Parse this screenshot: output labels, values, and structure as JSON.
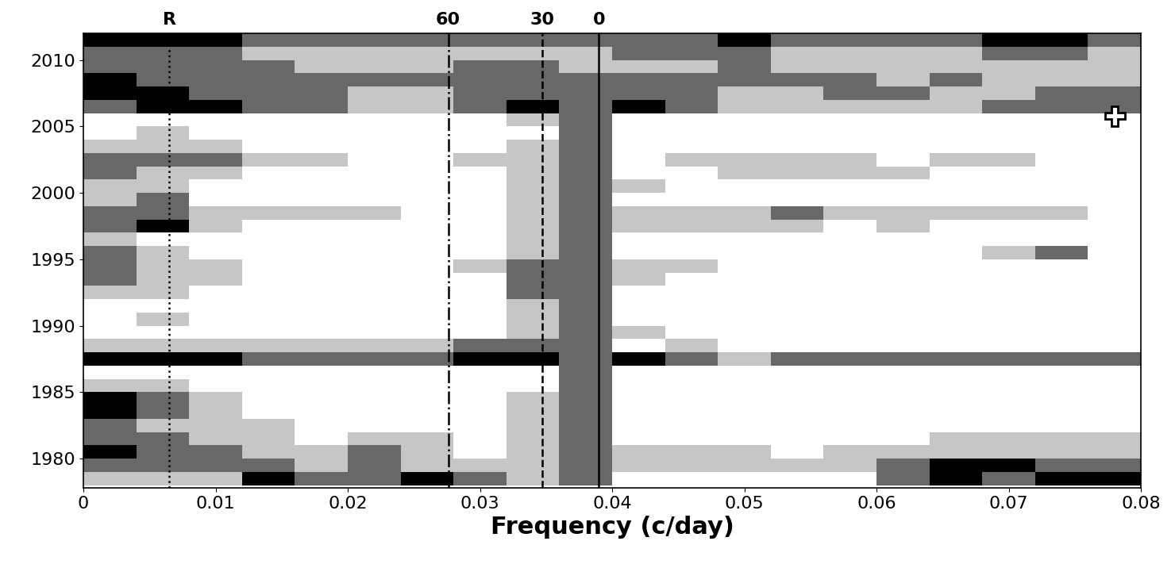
{
  "chart_data": {
    "type": "heatmap",
    "xlabel": "Frequency (c/day)",
    "xlim": [
      0,
      0.08
    ],
    "ylim": [
      1977.8,
      2012
    ],
    "xticks": [
      0,
      0.01,
      0.02,
      0.03,
      0.04,
      0.05,
      0.06,
      0.07,
      0.08
    ],
    "yticks": [
      1980,
      1985,
      1990,
      1995,
      2000,
      2005,
      2010
    ],
    "x_edges": [
      0,
      0.004,
      0.008,
      0.012,
      0.016,
      0.02,
      0.024,
      0.028,
      0.032,
      0.036,
      0.04,
      0.044,
      0.048,
      0.052,
      0.056,
      0.06,
      0.064,
      0.068,
      0.072,
      0.076,
      0.08
    ],
    "y_edges": [
      1978,
      1979,
      1980,
      1981,
      1982,
      1983,
      1984,
      1985,
      1986,
      1987,
      1988,
      1989,
      1990,
      1991,
      1992,
      1993,
      1994,
      1995,
      1996,
      1997,
      1998,
      1999,
      2000,
      2001,
      2002,
      2003,
      2004,
      2005,
      2006,
      2007,
      2008,
      2009,
      2010,
      2011,
      2012
    ],
    "clim": [
      0,
      3
    ],
    "cells": [
      [
        1,
        1,
        1,
        3,
        2,
        2,
        3,
        2,
        1,
        2,
        0,
        0,
        0,
        0,
        0,
        2,
        3,
        2,
        3,
        3
      ],
      [
        2,
        2,
        2,
        2,
        1,
        2,
        1,
        1,
        1,
        2,
        1,
        1,
        1,
        1,
        1,
        2,
        3,
        3,
        2,
        2
      ],
      [
        3,
        2,
        2,
        1,
        1,
        2,
        1,
        0,
        1,
        2,
        1,
        1,
        1,
        0,
        1,
        1,
        1,
        1,
        1,
        1
      ],
      [
        2,
        2,
        1,
        1,
        0,
        1,
        1,
        0,
        1,
        2,
        0,
        0,
        0,
        0,
        0,
        0,
        1,
        1,
        1,
        1
      ],
      [
        2,
        1,
        1,
        1,
        0,
        0,
        0,
        0,
        1,
        2,
        0,
        0,
        0,
        0,
        0,
        0,
        0,
        0,
        0,
        0
      ],
      [
        3,
        2,
        1,
        0,
        0,
        0,
        0,
        0,
        1,
        2,
        0,
        0,
        0,
        0,
        0,
        0,
        0,
        0,
        0,
        0
      ],
      [
        3,
        2,
        1,
        0,
        0,
        0,
        0,
        0,
        1,
        2,
        0,
        0,
        0,
        0,
        0,
        0,
        0,
        0,
        0,
        0
      ],
      [
        1,
        1,
        0,
        0,
        0,
        0,
        0,
        0,
        0,
        2,
        0,
        0,
        0,
        0,
        0,
        0,
        0,
        0,
        0,
        0
      ],
      [
        0,
        0,
        0,
        0,
        0,
        0,
        0,
        0,
        0,
        2,
        0,
        0,
        0,
        0,
        0,
        0,
        0,
        0,
        0,
        0
      ],
      [
        3,
        3,
        3,
        2,
        2,
        2,
        2,
        3,
        3,
        2,
        3,
        2,
        1,
        2,
        2,
        2,
        2,
        2,
        2,
        2
      ],
      [
        1,
        1,
        1,
        1,
        1,
        1,
        1,
        2,
        2,
        2,
        0,
        1,
        0,
        0,
        0,
        0,
        0,
        0,
        0,
        0
      ],
      [
        0,
        0,
        0,
        0,
        0,
        0,
        0,
        0,
        1,
        2,
        1,
        0,
        0,
        0,
        0,
        0,
        0,
        0,
        0,
        0
      ],
      [
        0,
        1,
        0,
        0,
        0,
        0,
        0,
        0,
        1,
        2,
        0,
        0,
        0,
        0,
        0,
        0,
        0,
        0,
        0,
        0
      ],
      [
        0,
        0,
        0,
        0,
        0,
        0,
        0,
        0,
        1,
        2,
        0,
        0,
        0,
        0,
        0,
        0,
        0,
        0,
        0,
        0
      ],
      [
        1,
        1,
        0,
        0,
        0,
        0,
        0,
        0,
        2,
        2,
        0,
        0,
        0,
        0,
        0,
        0,
        0,
        0,
        0,
        0
      ],
      [
        2,
        1,
        1,
        0,
        0,
        0,
        0,
        0,
        2,
        2,
        1,
        0,
        0,
        0,
        0,
        0,
        0,
        0,
        0,
        0
      ],
      [
        2,
        1,
        1,
        0,
        0,
        0,
        0,
        1,
        2,
        2,
        1,
        1,
        0,
        0,
        0,
        0,
        0,
        0,
        0,
        0
      ],
      [
        2,
        1,
        0,
        0,
        0,
        0,
        0,
        0,
        1,
        2,
        0,
        0,
        0,
        0,
        0,
        0,
        0,
        1,
        2,
        0
      ],
      [
        1,
        0,
        0,
        0,
        0,
        0,
        0,
        0,
        1,
        2,
        0,
        0,
        0,
        0,
        0,
        0,
        0,
        0,
        0,
        0
      ],
      [
        2,
        3,
        1,
        0,
        0,
        0,
        0,
        0,
        1,
        2,
        1,
        1,
        1,
        1,
        0,
        1,
        0,
        0,
        0,
        0
      ],
      [
        2,
        2,
        1,
        1,
        1,
        1,
        0,
        0,
        1,
        2,
        1,
        1,
        1,
        2,
        1,
        1,
        1,
        1,
        1,
        0
      ],
      [
        1,
        2,
        0,
        0,
        0,
        0,
        0,
        0,
        1,
        2,
        0,
        0,
        0,
        0,
        0,
        0,
        0,
        0,
        0,
        0
      ],
      [
        1,
        1,
        0,
        0,
        0,
        0,
        0,
        0,
        1,
        2,
        1,
        0,
        0,
        0,
        0,
        0,
        0,
        0,
        0,
        0
      ],
      [
        2,
        1,
        1,
        0,
        0,
        0,
        0,
        0,
        1,
        2,
        0,
        0,
        1,
        1,
        1,
        1,
        0,
        0,
        0,
        0
      ],
      [
        2,
        2,
        2,
        1,
        1,
        0,
        0,
        1,
        1,
        2,
        0,
        1,
        1,
        1,
        1,
        0,
        1,
        1,
        0,
        0
      ],
      [
        1,
        1,
        1,
        0,
        0,
        0,
        0,
        0,
        1,
        2,
        0,
        0,
        0,
        0,
        0,
        0,
        0,
        0,
        0,
        0
      ],
      [
        0,
        1,
        0,
        0,
        0,
        0,
        0,
        0,
        0,
        2,
        0,
        0,
        0,
        0,
        0,
        0,
        0,
        0,
        0,
        0
      ],
      [
        0,
        0,
        0,
        0,
        0,
        0,
        0,
        0,
        1,
        2,
        0,
        0,
        0,
        0,
        0,
        0,
        0,
        0,
        0,
        0
      ],
      [
        2,
        3,
        3,
        2,
        2,
        1,
        1,
        2,
        3,
        2,
        3,
        2,
        1,
        1,
        1,
        1,
        1,
        2,
        2,
        2
      ],
      [
        3,
        3,
        2,
        2,
        2,
        1,
        1,
        2,
        2,
        2,
        2,
        2,
        1,
        1,
        2,
        2,
        1,
        1,
        2,
        2
      ],
      [
        3,
        2,
        2,
        2,
        2,
        2,
        2,
        2,
        2,
        2,
        2,
        2,
        2,
        2,
        2,
        1,
        2,
        1,
        1,
        1
      ],
      [
        2,
        2,
        2,
        2,
        1,
        1,
        1,
        2,
        2,
        1,
        1,
        1,
        2,
        1,
        1,
        1,
        1,
        1,
        1,
        1
      ],
      [
        2,
        2,
        2,
        1,
        1,
        1,
        1,
        1,
        1,
        1,
        2,
        2,
        2,
        1,
        1,
        1,
        1,
        2,
        2,
        1
      ],
      [
        3,
        3,
        3,
        2,
        2,
        2,
        2,
        2,
        2,
        2,
        2,
        2,
        3,
        2,
        2,
        2,
        2,
        3,
        3,
        2
      ]
    ],
    "vlines": [
      {
        "x": 0.0065,
        "label": "R",
        "line_style": "dotted"
      },
      {
        "x": 0.0276,
        "label": "60",
        "line_style": "dashdot"
      },
      {
        "x": 0.0347,
        "label": "30",
        "line_style": "dashed"
      },
      {
        "x": 0.039,
        "label": "0",
        "line_style": "solid"
      }
    ],
    "points": [
      {
        "x": 0.078,
        "y": 2005.8
      }
    ],
    "marker": "plus",
    "tick_labels": true
  }
}
